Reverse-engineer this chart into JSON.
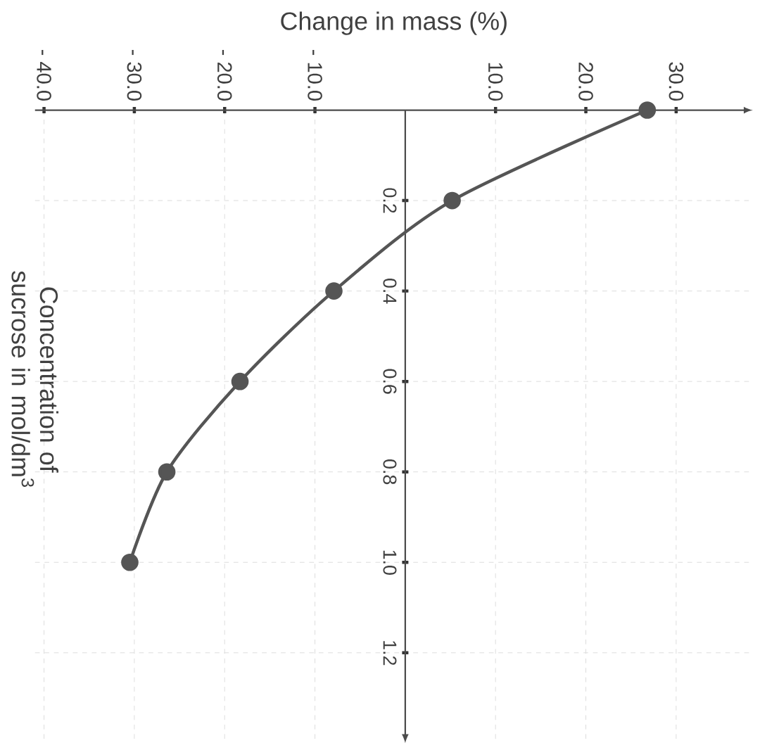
{
  "chart_data": {
    "type": "line",
    "xlabel": "Change in mass (%)",
    "ylabel": "Concentration of sucrose in mol/dm$^{3}$",
    "x": [
      26.8,
      5.2,
      -7.9,
      -18.3,
      -26.4,
      -30.5
    ],
    "values": [
      0,
      0.2,
      0.4,
      0.6,
      0.8,
      1.0
    ],
    "color": "#555555",
    "marker": "circle",
    "line_style": "solid",
    "grid": true,
    "xlim": [
      -41,
      38.5
    ],
    "ylim": [
      1.4,
      0
    ],
    "xticks": [
      {
        "value": -40,
        "label": "- 40.0"
      },
      {
        "value": -30,
        "label": "- 30.0"
      },
      {
        "value": -20,
        "label": "- 20.0"
      },
      {
        "value": -10,
        "label": "- 10.0"
      },
      {
        "value": 10,
        "label": "10.0"
      },
      {
        "value": 20,
        "label": "20.0"
      },
      {
        "value": 30,
        "label": "30.0"
      }
    ],
    "yticks": [
      0.2,
      0.4,
      0.6,
      0.8,
      {
        "value": 1.0,
        "label": "1.0"
      },
      1.2
    ]
  }
}
